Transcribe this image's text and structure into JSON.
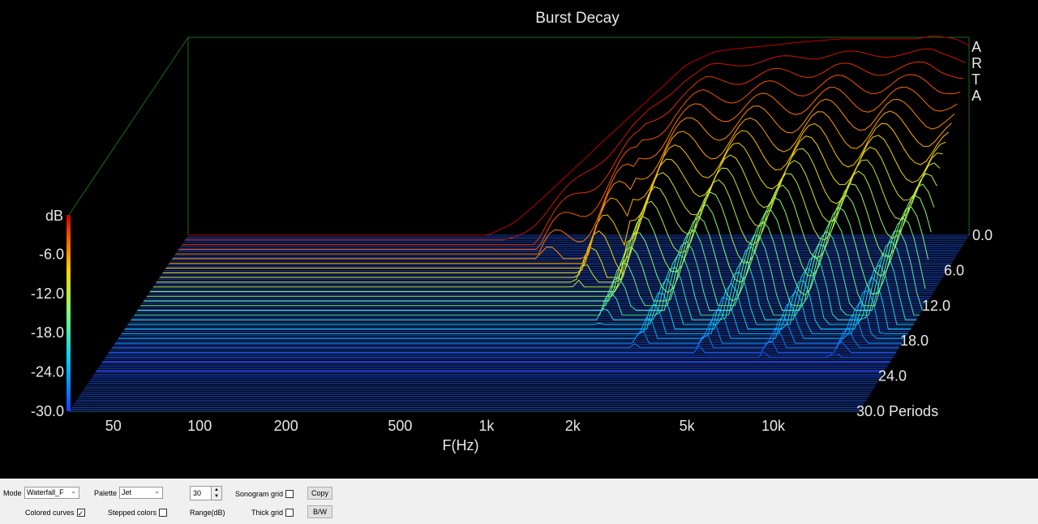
{
  "chart_data": {
    "type": "waterfall",
    "title": "Burst Decay",
    "xlabel": "F(Hz)",
    "x_scale": "log",
    "x_ticks": [
      "50",
      "100",
      "200",
      "500",
      "1k",
      "2k",
      "5k",
      "10k"
    ],
    "x_tick_values": [
      50,
      100,
      200,
      500,
      1000,
      2000,
      5000,
      10000
    ],
    "xlim": [
      35,
      20000
    ],
    "z_label": "dB",
    "z_ticks": [
      "0.0",
      "-6.0",
      "-12.0",
      "-18.0",
      "-24.0",
      "-30.0"
    ],
    "z_range": [
      -30,
      0
    ],
    "depth_ticks": [
      "0.0",
      "6.0",
      "12.0",
      "18.0",
      "24.0",
      "30.0 Periods"
    ],
    "depth_range": [
      0,
      30
    ],
    "palette": "Jet",
    "watermark": [
      "A",
      "R",
      "T",
      "A"
    ],
    "series": [
      {
        "name": "0.0",
        "x": [
          35,
          400,
          500,
          600,
          800,
          1000,
          1500,
          2000,
          2500,
          3000,
          4000,
          5000,
          7000,
          10000,
          13000,
          15000,
          18000,
          20000
        ],
        "y": [
          -30,
          -30,
          -28,
          -25,
          -20,
          -16,
          -9,
          -4,
          -2,
          -1.5,
          -1,
          -0.5,
          0,
          0,
          0,
          0.5,
          0,
          -1
        ]
      }
    ]
  },
  "controls": {
    "mode_label": "Mode",
    "mode_value": "Waterfall_F",
    "palette_label": "Palette",
    "palette_value": "Jet",
    "range_value": "30",
    "range_label": "Range(dB)",
    "sonogram_grid_label": "Sonogram grid",
    "sonogram_grid_checked": false,
    "copy_label": "Copy",
    "colored_curves_label": "Colored curves",
    "colored_curves_checked": true,
    "stepped_colors_label": "Stepped colors",
    "stepped_colors_checked": false,
    "thick_grid_label": "Thick grid",
    "thick_grid_checked": false,
    "bw_label": "B/W"
  }
}
